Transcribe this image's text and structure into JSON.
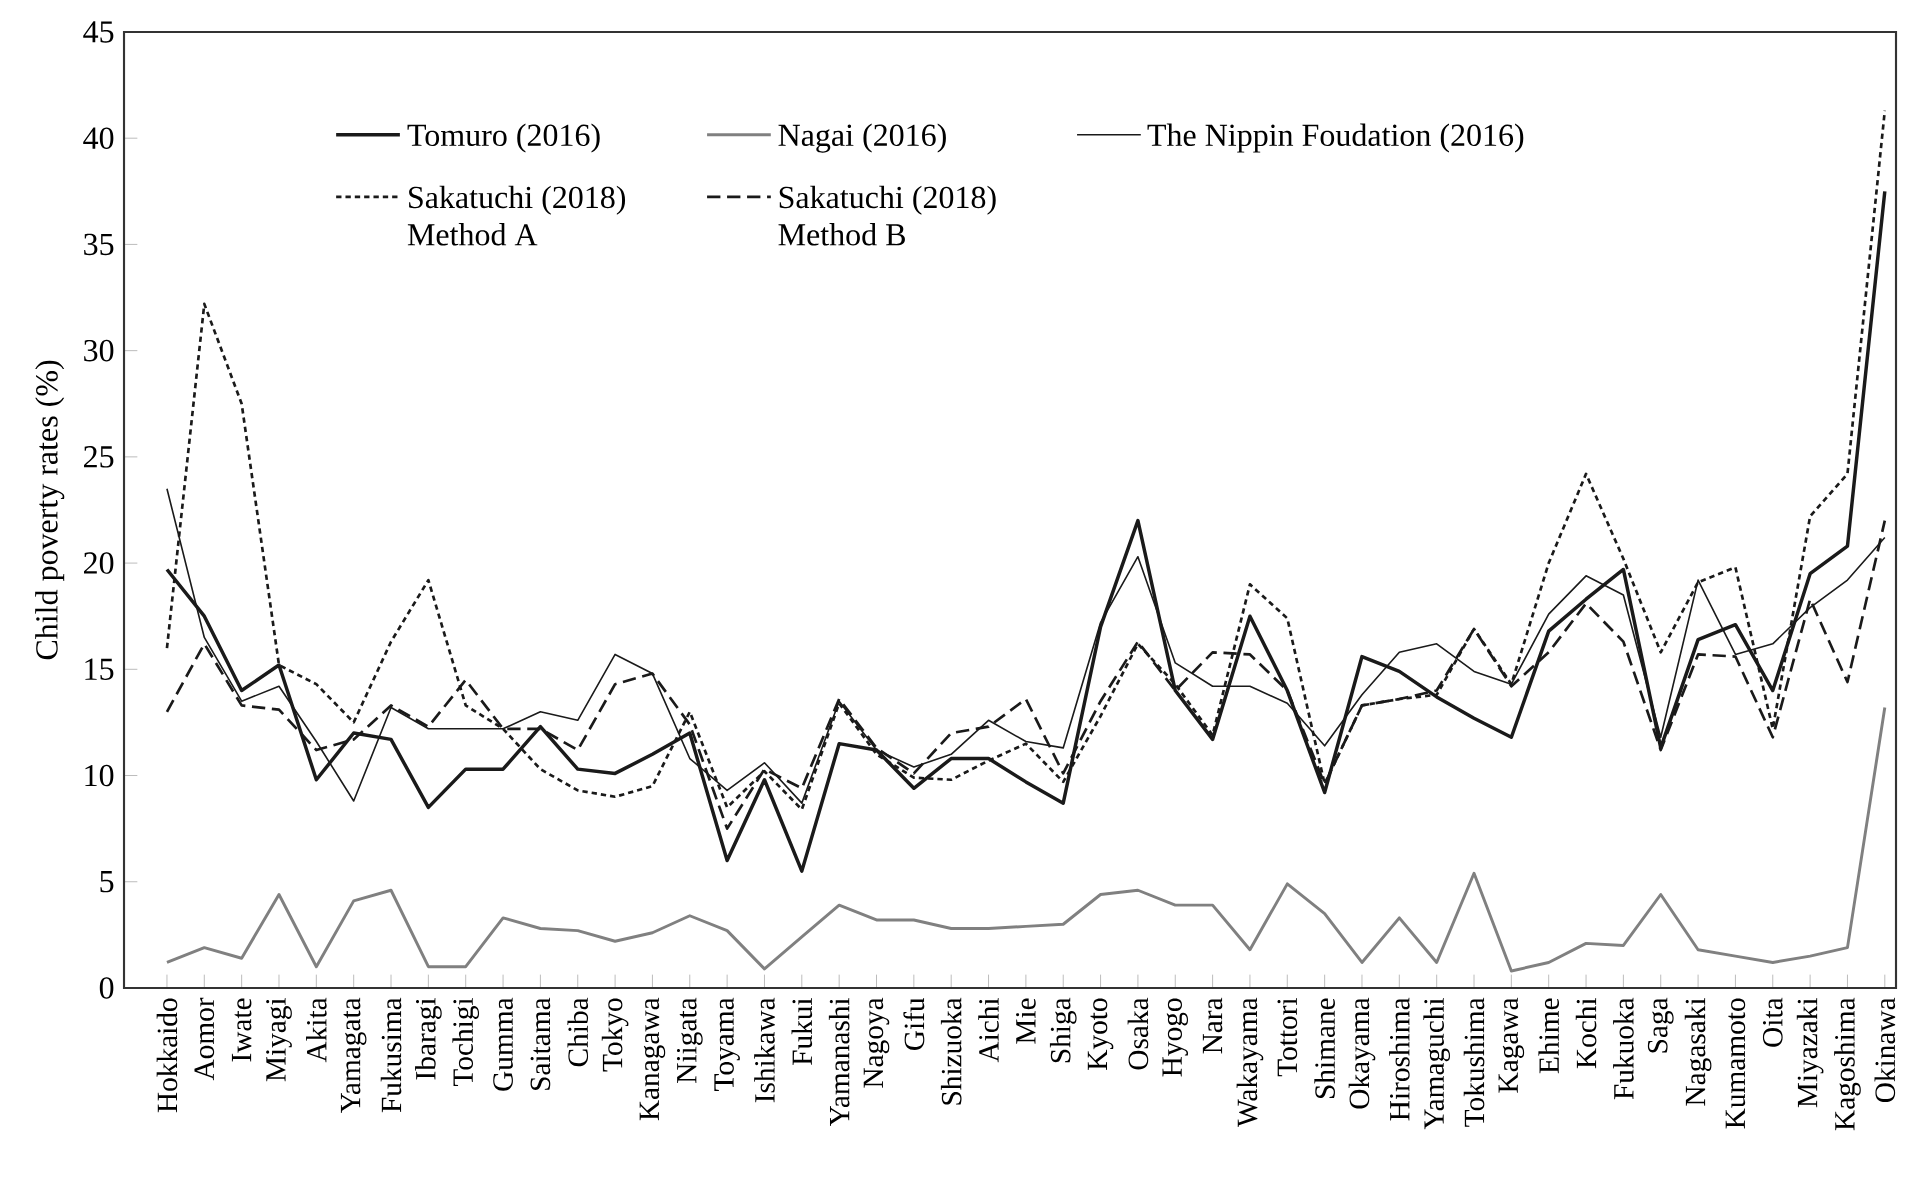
{
  "chart_data": {
    "type": "line",
    "ylabel": "Child poverty rates (%)",
    "categories": [
      "Hokkaido",
      "Aomor",
      "Iwate",
      "Miyagi",
      "Akita",
      "Yamagata",
      "Fukusima",
      "Ibaragi",
      "Tochigi",
      "Gumma",
      "Saitama",
      "Chiba",
      "Tokyo",
      "Kanagawa",
      "Niigata",
      "Toyama",
      "Ishikawa",
      "Fukui",
      "Yamanashi",
      "Nagoya",
      "Gifu",
      "Shizuoka",
      "Aichi",
      "Mie",
      "Shiga",
      "Kyoto",
      "Osaka",
      "Hyogo",
      "Nara",
      "Wakayama",
      "Tottori",
      "Shimane",
      "Okayama",
      "Hiroshima",
      "Yamaguchi",
      "Tokushima",
      "Kagawa",
      "Ehime",
      "Kochi",
      "Fukuoka",
      "Saga",
      "Nagasaki",
      "Kumamoto",
      "Oita",
      "Miyazaki",
      "Kagoshima",
      "Okinawa"
    ],
    "series": [
      {
        "name": "Tomuro (2016)",
        "color": "#1a1a1a",
        "line_style": "solid",
        "values": [
          19.7,
          17.5,
          14,
          15.2,
          9.8,
          12,
          11.7,
          8.5,
          10.3,
          10.3,
          12.3,
          10.3,
          10.1,
          11,
          12,
          6,
          9.8,
          5.5,
          11.5,
          11.2,
          9.4,
          10.8,
          10.8,
          9.7,
          8.7,
          17,
          22,
          14,
          11.7,
          17.5,
          14,
          9.2,
          15.6,
          14.9,
          13.7,
          12.7,
          11.8,
          16.8,
          18.3,
          19.7,
          11.3,
          16.4,
          17.1,
          14,
          19.5,
          20.8,
          37.5
        ]
      },
      {
        "name": "Nagai (2016)",
        "color": "#808080",
        "line_style": "solid",
        "values": [
          1.2,
          1.9,
          1.4,
          4.4,
          1.0,
          4.1,
          4.6,
          1.0,
          1.0,
          3.3,
          2.8,
          2.7,
          2.2,
          2.6,
          3.4,
          2.7,
          0.9,
          2.4,
          3.9,
          3.2,
          3.2,
          2.8,
          2.8,
          2.9,
          3.0,
          4.4,
          4.6,
          3.9,
          3.9,
          1.8,
          4.9,
          3.5,
          1.2,
          3.3,
          1.2,
          5.4,
          0.8,
          1.2,
          2.1,
          2.0,
          4.4,
          1.8,
          1.5,
          1.2,
          1.5,
          1.9,
          13.2
        ]
      },
      {
        "name": "The Nippin Foudation (2016)",
        "color": "#1a1a1a",
        "line_style": "solid",
        "values": [
          23.5,
          16.5,
          13.5,
          14.2,
          11.6,
          8.8,
          13.2,
          12.2,
          12.2,
          12.2,
          13.0,
          12.6,
          15.7,
          14.8,
          10.8,
          9.3,
          10.6,
          8.7,
          13.5,
          11.2,
          10.4,
          11.0,
          12.6,
          11.6,
          11.3,
          17.2,
          20.3,
          15.3,
          14.2,
          14.2,
          13.4,
          11.4,
          13.8,
          15.8,
          16.2,
          14.9,
          14.3,
          17.6,
          19.4,
          18.5,
          11.8,
          19.2,
          15.7,
          16.2,
          17.9,
          19.2,
          21.2
        ]
      },
      {
        "name": "Sakatuchi (2018) Method A",
        "color": "#1a1a1a",
        "line_style": "dotted",
        "values": [
          16,
          32.2,
          27.5,
          15.2,
          14.3,
          12.5,
          16.3,
          19.2,
          13.3,
          12.2,
          10.3,
          9.3,
          9.0,
          9.5,
          13,
          8.5,
          10.2,
          8.4,
          13.4,
          11,
          9.9,
          9.8,
          10.7,
          11.5,
          9.7,
          12.8,
          16.2,
          14.3,
          11.9,
          19.0,
          17.4,
          9.6,
          13.3,
          13.6,
          13.8,
          16.9,
          14.3,
          20,
          24.2,
          20.2,
          15.8,
          19.1,
          19.8,
          12.2,
          22.2,
          24.2,
          41.3
        ]
      },
      {
        "name": "Sakatuchi (2018) Method B",
        "color": "#1a1a1a",
        "line_style": "dashed",
        "values": [
          13.0,
          16.2,
          13.3,
          13.1,
          11.2,
          11.7,
          13.3,
          12.3,
          14.5,
          12.2,
          12.2,
          11.2,
          14.3,
          14.8,
          12.4,
          7.5,
          10.3,
          9.4,
          13.6,
          11.3,
          10.1,
          12.0,
          12.3,
          13.6,
          10.1,
          13.5,
          16.3,
          14.0,
          15.8,
          15.7,
          14.0,
          9.6,
          13.3,
          13.6,
          14.0,
          16.9,
          14.2,
          15.8,
          18.1,
          16.3,
          11.2,
          15.7,
          15.6,
          11.8,
          18.3,
          14.4,
          22.0
        ]
      }
    ],
    "ylim": [
      0,
      45
    ],
    "yticks": [
      0,
      5,
      10,
      15,
      20,
      25,
      30,
      35,
      40,
      45
    ],
    "grid": false,
    "legend": "top",
    "marker": "none"
  }
}
